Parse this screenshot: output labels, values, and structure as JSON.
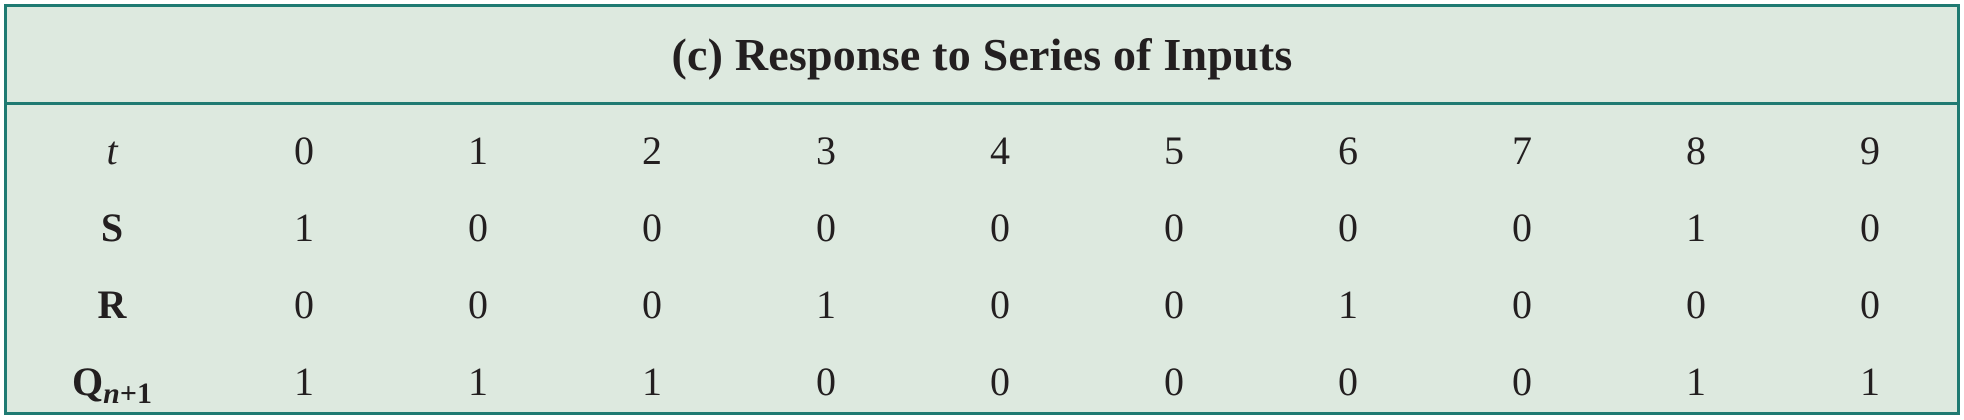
{
  "title": "(c) Response to Series of Inputs",
  "columns": [
    "0",
    "1",
    "2",
    "3",
    "4",
    "5",
    "6",
    "7",
    "8",
    "9"
  ],
  "rows": [
    {
      "label": "t",
      "values": [
        "0",
        "1",
        "2",
        "3",
        "4",
        "5",
        "6",
        "7",
        "8",
        "9"
      ]
    },
    {
      "label": "S",
      "values": [
        "1",
        "0",
        "0",
        "0",
        "0",
        "0",
        "0",
        "0",
        "1",
        "0"
      ]
    },
    {
      "label": "R",
      "values": [
        "0",
        "0",
        "0",
        "1",
        "0",
        "0",
        "1",
        "0",
        "0",
        "0"
      ]
    },
    {
      "label": "Q",
      "label_subscript_var": "n",
      "label_subscript_rest": "+1",
      "values": [
        "1",
        "1",
        "1",
        "0",
        "0",
        "0",
        "0",
        "0",
        "1",
        "1"
      ]
    }
  ],
  "colors": {
    "border": "#1f7a72",
    "background": "#dde9df",
    "text": "#231f20"
  }
}
